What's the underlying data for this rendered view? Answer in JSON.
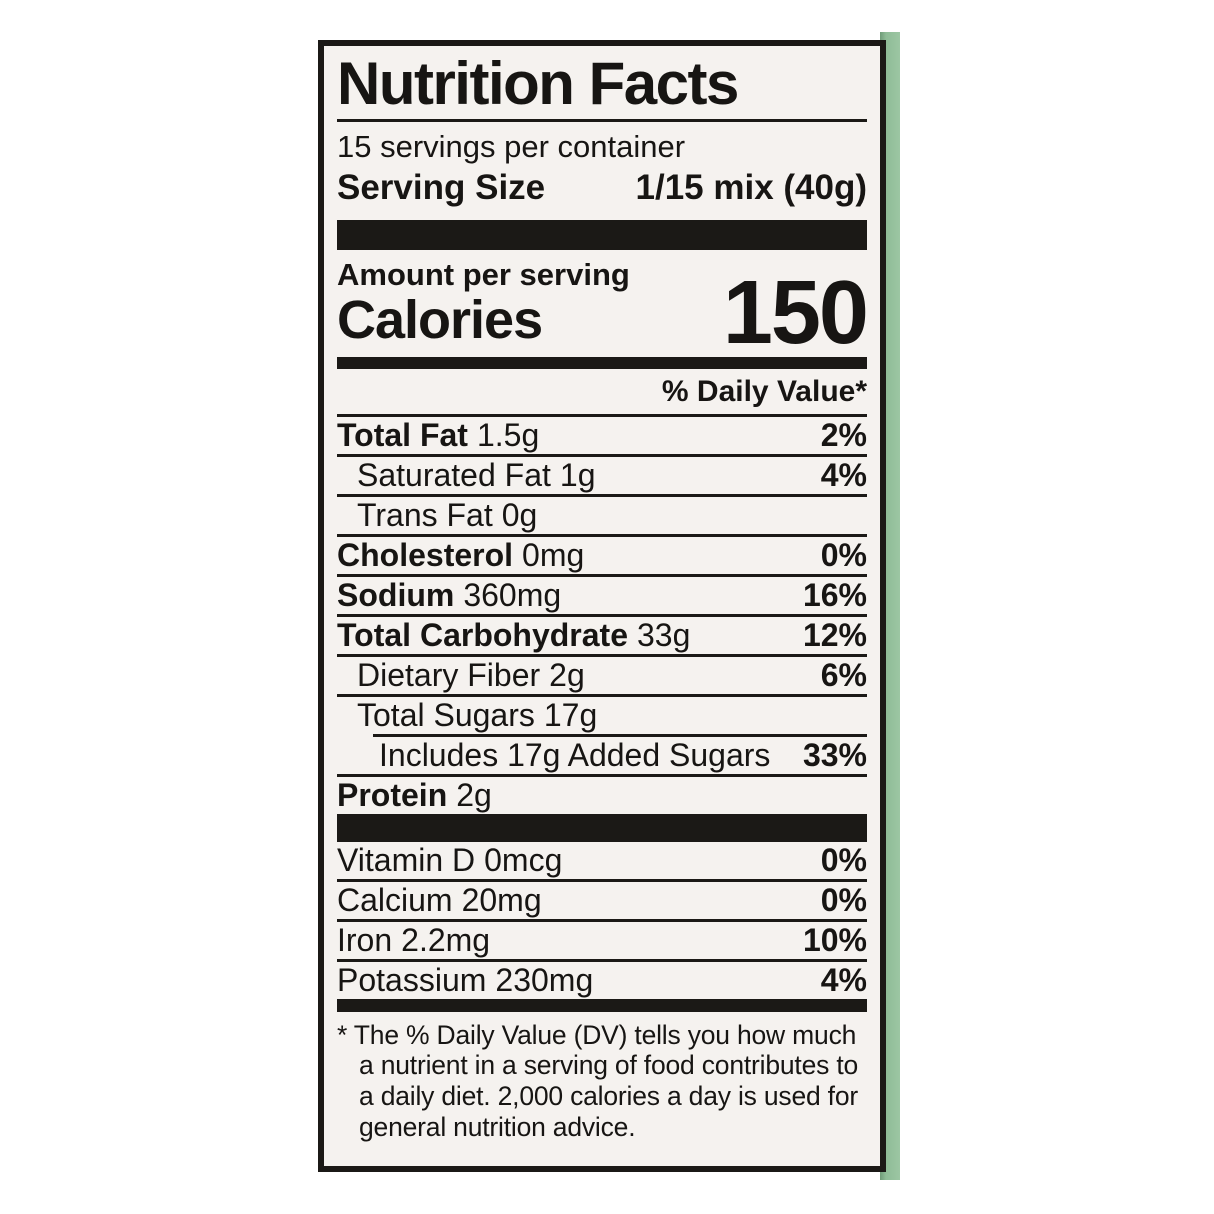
{
  "label": {
    "title": "Nutrition Facts",
    "servings_per_container": "15 servings per container",
    "serving_size_label": "Serving Size",
    "serving_size_value": "1/15 mix (40g)",
    "amount_per_serving": "Amount per serving",
    "calories_label": "Calories",
    "calories_value": "150",
    "daily_value_header": "% Daily Value*",
    "nutrients": [
      {
        "name": "Total Fat",
        "amount": "1.5g",
        "dv": "2%"
      },
      {
        "name": "Saturated Fat",
        "amount": "1g",
        "dv": "4%"
      },
      {
        "name": "Trans Fat",
        "amount": "0g",
        "dv": ""
      },
      {
        "name": "Cholesterol",
        "amount": "0mg",
        "dv": "0%"
      },
      {
        "name": "Sodium",
        "amount": "360mg",
        "dv": "16%"
      },
      {
        "name": "Total Carbohydrate",
        "amount": "33g",
        "dv": "12%"
      },
      {
        "name": "Dietary Fiber",
        "amount": "2g",
        "dv": "6%"
      },
      {
        "name": "Total Sugars",
        "amount": "17g",
        "dv": ""
      },
      {
        "name": "Includes 17g Added Sugars",
        "amount": "",
        "dv": "33%"
      },
      {
        "name": "Protein",
        "amount": "2g",
        "dv": ""
      }
    ],
    "micronutrients": [
      {
        "name": "Vitamin D",
        "amount": "0mcg",
        "dv": "0%"
      },
      {
        "name": "Calcium",
        "amount": "20mg",
        "dv": "0%"
      },
      {
        "name": "Iron",
        "amount": "2.2mg",
        "dv": "10%"
      },
      {
        "name": "Potassium",
        "amount": "230mg",
        "dv": "4%"
      }
    ],
    "footnote": "* The % Daily Value (DV) tells you how much a nutrient in a serving of food contributes to a daily diet. 2,000 calories a day is used for general nutrition advice."
  },
  "colors": {
    "page_background": "#ffffff",
    "label_background": "#f5f2ef",
    "ink": "#1b1916",
    "package_green": "#8fbc97"
  }
}
